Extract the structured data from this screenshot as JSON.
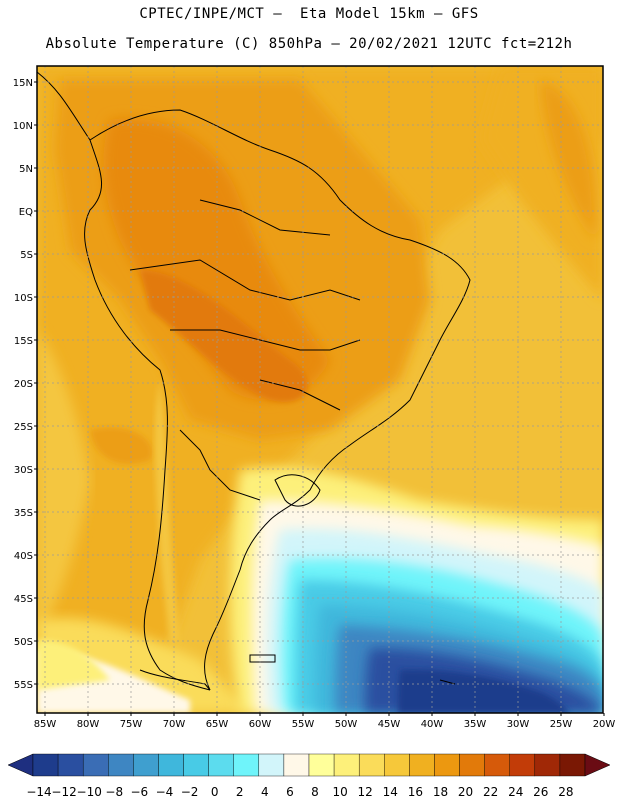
{
  "header": {
    "line1": "CPTEC/INPE/MCT –  Eta Model 15km – GFS",
    "line2": "Absolute Temperature (C) 850hPa – 20/02/2021 12UTC fct=212h"
  },
  "axes": {
    "lat_labels": [
      "15N",
      "10N",
      "5N",
      "EQ",
      "5S",
      "10S",
      "15S",
      "20S",
      "25S",
      "30S",
      "35S",
      "40S",
      "45S",
      "50S",
      "55S"
    ],
    "lon_labels": [
      "85W",
      "80W",
      "75W",
      "70W",
      "65W",
      "60W",
      "55W",
      "50W",
      "45W",
      "40W",
      "35W",
      "30W",
      "25W",
      "20W"
    ]
  },
  "colorbar": {
    "labels": [
      "-14",
      "-12",
      "-10",
      "-8",
      "-6",
      "-4",
      "-2",
      "0",
      "2",
      "4",
      "6",
      "8",
      "10",
      "12",
      "14",
      "16",
      "18",
      "20",
      "22",
      "24",
      "26",
      "28"
    ],
    "colors": [
      "#1e3c8c",
      "#2a4fa0",
      "#3a6db5",
      "#3e86c2",
      "#3f9fcf",
      "#3fb7dc",
      "#48cbe6",
      "#5cdcee",
      "#6ff4fa",
      "#d2f5fa",
      "#fff8e8",
      "#ffff9a",
      "#fdf07a",
      "#fadc5a",
      "#f6c83a",
      "#f0b020",
      "#ec9810",
      "#e27a0a",
      "#d65a0a",
      "#c23c08",
      "#a02806",
      "#7a1804"
    ],
    "under_color": "#1e2f80",
    "over_color": "#6a0c14"
  }
}
